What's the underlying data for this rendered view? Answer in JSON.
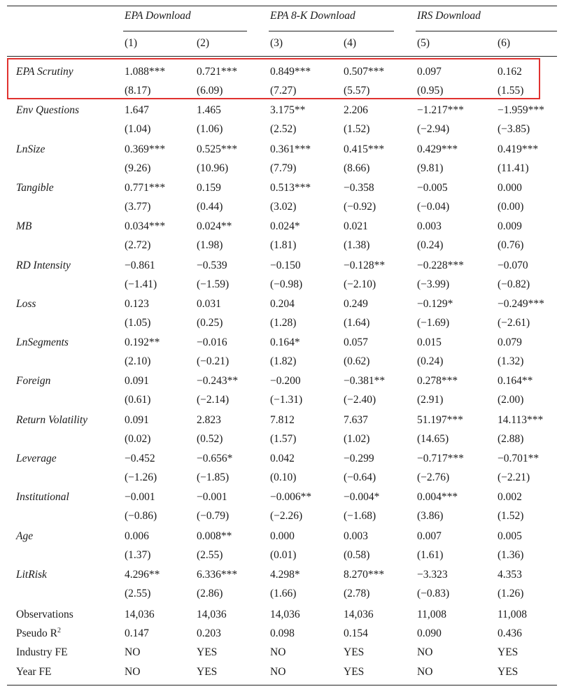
{
  "groups": [
    {
      "label": "EPA Download"
    },
    {
      "label": "EPA 8-K Download"
    },
    {
      "label": "IRS Download"
    }
  ],
  "columns": [
    "(1)",
    "(2)",
    "(3)",
    "(4)",
    "(5)",
    "(6)"
  ],
  "rows": [
    {
      "label": "EPA Scrutiny",
      "coef": [
        "1.088***",
        "0.721***",
        "0.849***",
        "0.507***",
        "0.097",
        "0.162"
      ],
      "t": [
        "(8.17)",
        "(6.09)",
        "(7.27)",
        "(5.57)",
        "(0.95)",
        "(1.55)"
      ]
    },
    {
      "label": "Env Questions",
      "coef": [
        "1.647",
        "1.465",
        "3.175**",
        "2.206",
        "−1.217***",
        "−1.959***"
      ],
      "t": [
        "(1.04)",
        "(1.06)",
        "(2.52)",
        "(1.52)",
        "(−2.94)",
        "(−3.85)"
      ]
    },
    {
      "label": "LnSize",
      "coef": [
        "0.369***",
        "0.525***",
        "0.361***",
        "0.415***",
        "0.429***",
        "0.419***"
      ],
      "t": [
        "(9.26)",
        "(10.96)",
        "(7.79)",
        "(8.66)",
        "(9.81)",
        "(11.41)"
      ]
    },
    {
      "label": "Tangible",
      "coef": [
        "0.771***",
        "0.159",
        "0.513***",
        "−0.358",
        "−0.005",
        "0.000"
      ],
      "t": [
        "(3.77)",
        "(0.44)",
        "(3.02)",
        "(−0.92)",
        "(−0.04)",
        "(0.00)"
      ]
    },
    {
      "label": "MB",
      "coef": [
        "0.034***",
        "0.024**",
        "0.024*",
        "0.021",
        "0.003",
        "0.009"
      ],
      "t": [
        "(2.72)",
        "(1.98)",
        "(1.81)",
        "(1.38)",
        "(0.24)",
        "(0.76)"
      ]
    },
    {
      "label": "RD Intensity",
      "coef": [
        "−0.861",
        "−0.539",
        "−0.150",
        "−0.128**",
        "−0.228***",
        "−0.070"
      ],
      "t": [
        "(−1.41)",
        "(−1.59)",
        "(−0.98)",
        "(−2.10)",
        "(−3.99)",
        "(−0.82)"
      ]
    },
    {
      "label": "Loss",
      "coef": [
        "0.123",
        "0.031",
        "0.204",
        "0.249",
        "−0.129*",
        "−0.249***"
      ],
      "t": [
        "(1.05)",
        "(0.25)",
        "(1.28)",
        "(1.64)",
        "(−1.69)",
        "(−2.61)"
      ]
    },
    {
      "label": "LnSegments",
      "coef": [
        "0.192**",
        "−0.016",
        "0.164*",
        "0.057",
        "0.015",
        "0.079"
      ],
      "t": [
        "(2.10)",
        "(−0.21)",
        "(1.82)",
        "(0.62)",
        "(0.24)",
        "(1.32)"
      ]
    },
    {
      "label": "Foreign",
      "coef": [
        "0.091",
        "−0.243**",
        "−0.200",
        "−0.381**",
        "0.278***",
        "0.164**"
      ],
      "t": [
        "(0.61)",
        "(−2.14)",
        "(−1.31)",
        "(−2.40)",
        "(2.91)",
        "(2.00)"
      ]
    },
    {
      "label": "Return Volatility",
      "coef": [
        "0.091",
        "2.823",
        "7.812",
        "7.637",
        "51.197***",
        "14.113***"
      ],
      "t": [
        "(0.02)",
        "(0.52)",
        "(1.57)",
        "(1.02)",
        "(14.65)",
        "(2.88)"
      ]
    },
    {
      "label": "Leverage",
      "coef": [
        "−0.452",
        "−0.656*",
        "0.042",
        "−0.299",
        "−0.717***",
        "−0.701**"
      ],
      "t": [
        "(−1.26)",
        "(−1.85)",
        "(0.10)",
        "(−0.64)",
        "(−2.76)",
        "(−2.21)"
      ]
    },
    {
      "label": "Institutional",
      "coef": [
        "−0.001",
        "−0.001",
        "−0.006**",
        "−0.004*",
        "0.004***",
        "0.002"
      ],
      "t": [
        "(−0.86)",
        "(−0.79)",
        "(−2.26)",
        "(−1.68)",
        "(3.86)",
        "(1.52)"
      ]
    },
    {
      "label": "Age",
      "coef": [
        "0.006",
        "0.008**",
        "0.000",
        "0.003",
        "0.007",
        "0.005"
      ],
      "t": [
        "(1.37)",
        "(2.55)",
        "(0.01)",
        "(0.58)",
        "(1.61)",
        "(1.36)"
      ]
    },
    {
      "label": "LitRisk",
      "coef": [
        "4.296**",
        "6.336***",
        "4.298*",
        "8.270***",
        "−3.323",
        "4.353"
      ],
      "t": [
        "(2.55)",
        "(2.86)",
        "(1.66)",
        "(2.78)",
        "(−0.83)",
        "(1.26)"
      ]
    }
  ],
  "footer": [
    {
      "label": "Observations",
      "values": [
        "14,036",
        "14,036",
        "14,036",
        "14,036",
        "11,008",
        "11,008"
      ]
    },
    {
      "label": "Pseudo R",
      "sup": "2",
      "values": [
        "0.147",
        "0.203",
        "0.098",
        "0.154",
        "0.090",
        "0.436"
      ]
    },
    {
      "label": "Industry FE",
      "values": [
        "NO",
        "YES",
        "NO",
        "YES",
        "NO",
        "YES"
      ]
    },
    {
      "label": "Year FE",
      "values": [
        "NO",
        "YES",
        "NO",
        "YES",
        "NO",
        "YES"
      ]
    }
  ],
  "highlight_color": "#e0322f"
}
